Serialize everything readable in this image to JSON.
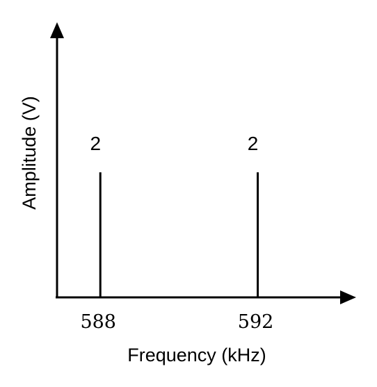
{
  "chart_data": {
    "type": "bar",
    "title": "",
    "xlabel": "Frequency (kHz)",
    "ylabel": "Amplitude (V)",
    "x": [
      588,
      592
    ],
    "tick_labels": [
      "588",
      "592"
    ],
    "values": [
      2,
      2
    ],
    "data_labels": [
      "2",
      "2"
    ],
    "xlim": [
      586.9,
      594.5
    ],
    "ylim": [
      0,
      4.4
    ],
    "grid": false,
    "legend": "none",
    "color": "#000000"
  }
}
